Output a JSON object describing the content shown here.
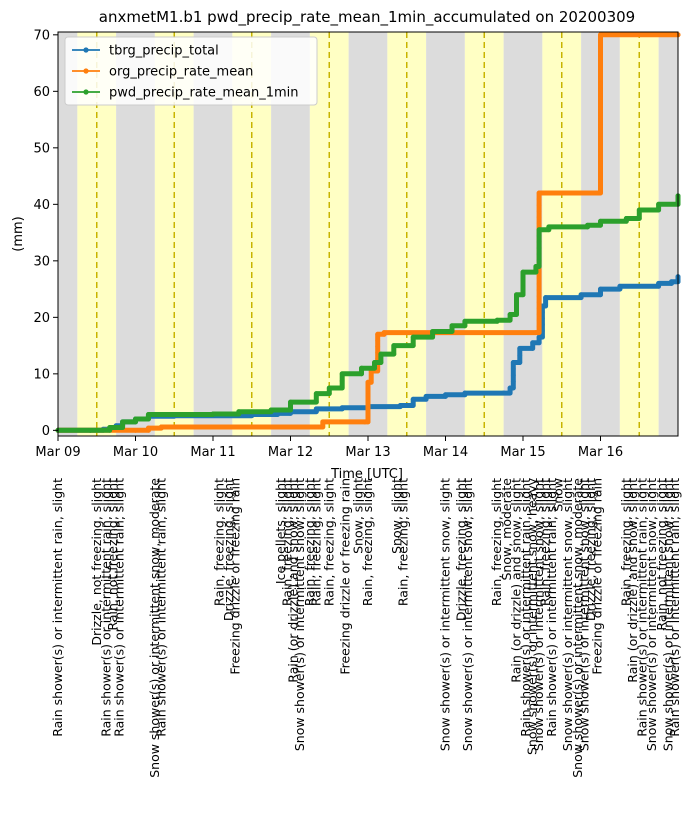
{
  "chart_data": {
    "type": "line",
    "title": "anxmetM1.b1 pwd_precip_rate_mean_1min_accumulated on 20200309",
    "xlabel": "Time [UTC]",
    "ylabel": "(mm)",
    "xlim": [
      "2020-03-09T00:00",
      "2020-03-17T00:00"
    ],
    "ylim": [
      -1,
      70.5
    ],
    "x_tick_labels": [
      {
        "t": "2020-03-09T00:00",
        "label": "Mar 09"
      },
      {
        "t": "2020-03-10T00:00",
        "label": "Mar 10"
      },
      {
        "t": "2020-03-11T00:00",
        "label": "Mar 11"
      },
      {
        "t": "2020-03-12T00:00",
        "label": "Mar 12"
      },
      {
        "t": "2020-03-13T00:00",
        "label": "Mar 13"
      },
      {
        "t": "2020-03-14T00:00",
        "label": "Mar 14"
      },
      {
        "t": "2020-03-15T00:00",
        "label": "Mar 15"
      },
      {
        "t": "2020-03-16T00:00",
        "label": "Mar 16"
      }
    ],
    "y_ticks": [
      0,
      10,
      20,
      30,
      40,
      50,
      60,
      70
    ],
    "legend_position": "top-left",
    "background_bands": [
      {
        "start": "2020-03-09T00:00",
        "end": "2020-03-09T06:00",
        "color": "#dcdcdc"
      },
      {
        "start": "2020-03-09T06:00",
        "end": "2020-03-09T18:00",
        "color": "#ffffc4"
      },
      {
        "start": "2020-03-09T18:00",
        "end": "2020-03-10T06:00",
        "color": "#dcdcdc"
      },
      {
        "start": "2020-03-10T06:00",
        "end": "2020-03-10T18:00",
        "color": "#ffffc4"
      },
      {
        "start": "2020-03-10T18:00",
        "end": "2020-03-11T06:00",
        "color": "#dcdcdc"
      },
      {
        "start": "2020-03-11T06:00",
        "end": "2020-03-11T18:00",
        "color": "#ffffc4"
      },
      {
        "start": "2020-03-11T18:00",
        "end": "2020-03-12T06:00",
        "color": "#dcdcdc"
      },
      {
        "start": "2020-03-12T06:00",
        "end": "2020-03-12T18:00",
        "color": "#ffffc4"
      },
      {
        "start": "2020-03-12T18:00",
        "end": "2020-03-13T06:00",
        "color": "#dcdcdc"
      },
      {
        "start": "2020-03-13T06:00",
        "end": "2020-03-13T18:00",
        "color": "#ffffc4"
      },
      {
        "start": "2020-03-13T18:00",
        "end": "2020-03-14T06:00",
        "color": "#dcdcdc"
      },
      {
        "start": "2020-03-14T06:00",
        "end": "2020-03-14T18:00",
        "color": "#ffffc4"
      },
      {
        "start": "2020-03-14T18:00",
        "end": "2020-03-15T06:00",
        "color": "#dcdcdc"
      },
      {
        "start": "2020-03-15T06:00",
        "end": "2020-03-15T18:00",
        "color": "#ffffc4"
      },
      {
        "start": "2020-03-15T18:00",
        "end": "2020-03-16T06:00",
        "color": "#dcdcdc"
      },
      {
        "start": "2020-03-16T06:00",
        "end": "2020-03-16T18:00",
        "color": "#ffffc4"
      },
      {
        "start": "2020-03-16T18:00",
        "end": "2020-03-17T00:00",
        "color": "#dcdcdc"
      }
    ],
    "noon_lines": [
      "2020-03-09T12:00",
      "2020-03-10T12:00",
      "2020-03-11T12:00",
      "2020-03-12T12:00",
      "2020-03-13T12:00",
      "2020-03-14T12:00",
      "2020-03-15T12:00",
      "2020-03-16T12:00"
    ],
    "series": [
      {
        "name": "tbrg_precip_total",
        "color": "#1f77b4",
        "points": [
          [
            "2020-03-09T00:00",
            0
          ],
          [
            "2020-03-09T10:00",
            0
          ],
          [
            "2020-03-09T14:00",
            0.2
          ],
          [
            "2020-03-09T18:00",
            0.8
          ],
          [
            "2020-03-09T20:00",
            1.5
          ],
          [
            "2020-03-10T00:00",
            2.0
          ],
          [
            "2020-03-10T04:00",
            2.5
          ],
          [
            "2020-03-10T12:00",
            2.6
          ],
          [
            "2020-03-11T00:00",
            2.6
          ],
          [
            "2020-03-11T12:00",
            2.8
          ],
          [
            "2020-03-11T20:00",
            3.0
          ],
          [
            "2020-03-12T00:00",
            3.3
          ],
          [
            "2020-03-12T08:00",
            3.8
          ],
          [
            "2020-03-12T16:00",
            4.0
          ],
          [
            "2020-03-13T00:00",
            4.2
          ],
          [
            "2020-03-13T10:00",
            4.4
          ],
          [
            "2020-03-13T14:00",
            5.5
          ],
          [
            "2020-03-13T18:00",
            6.0
          ],
          [
            "2020-03-14T00:00",
            6.3
          ],
          [
            "2020-03-14T06:00",
            6.6
          ],
          [
            "2020-03-14T18:00",
            6.6
          ],
          [
            "2020-03-14T20:00",
            7.5
          ],
          [
            "2020-03-14T21:00",
            12.0
          ],
          [
            "2020-03-14T23:00",
            14.5
          ],
          [
            "2020-03-15T03:00",
            15.5
          ],
          [
            "2020-03-15T05:00",
            16.5
          ],
          [
            "2020-03-15T06:00",
            22.0
          ],
          [
            "2020-03-15T07:00",
            23.5
          ],
          [
            "2020-03-15T18:00",
            24.0
          ],
          [
            "2020-03-16T00:00",
            25.0
          ],
          [
            "2020-03-16T06:00",
            25.5
          ],
          [
            "2020-03-16T18:00",
            26.0
          ],
          [
            "2020-03-16T22:00",
            26.3
          ],
          [
            "2020-03-17T00:00",
            27.2
          ]
        ]
      },
      {
        "name": "org_precip_rate_mean",
        "color": "#ff7f0e",
        "points": [
          [
            "2020-03-09T00:00",
            0
          ],
          [
            "2020-03-10T00:00",
            0
          ],
          [
            "2020-03-10T04:00",
            0.4
          ],
          [
            "2020-03-10T08:00",
            0.6
          ],
          [
            "2020-03-12T08:00",
            0.6
          ],
          [
            "2020-03-12T10:00",
            1.5
          ],
          [
            "2020-03-12T23:00",
            1.5
          ],
          [
            "2020-03-13T00:00",
            8.5
          ],
          [
            "2020-03-13T01:00",
            10.5
          ],
          [
            "2020-03-13T02:00",
            10.5
          ],
          [
            "2020-03-13T03:00",
            17.0
          ],
          [
            "2020-03-13T05:00",
            17.3
          ],
          [
            "2020-03-15T04:00",
            17.3
          ],
          [
            "2020-03-15T05:00",
            42.0
          ],
          [
            "2020-03-15T23:00",
            42.0
          ],
          [
            "2020-03-16T00:00",
            70.0
          ],
          [
            "2020-03-17T00:00",
            70.0
          ]
        ]
      },
      {
        "name": "pwd_precip_rate_mean_1min",
        "color": "#2ca02c",
        "points": [
          [
            "2020-03-09T00:00",
            0
          ],
          [
            "2020-03-09T10:00",
            0
          ],
          [
            "2020-03-09T16:00",
            0.5
          ],
          [
            "2020-03-09T20:00",
            1.5
          ],
          [
            "2020-03-10T00:00",
            2.0
          ],
          [
            "2020-03-10T04:00",
            2.8
          ],
          [
            "2020-03-11T00:00",
            2.9
          ],
          [
            "2020-03-11T08:00",
            3.3
          ],
          [
            "2020-03-11T18:00",
            3.6
          ],
          [
            "2020-03-12T00:00",
            5.0
          ],
          [
            "2020-03-12T08:00",
            6.5
          ],
          [
            "2020-03-12T12:00",
            7.5
          ],
          [
            "2020-03-12T16:00",
            10.0
          ],
          [
            "2020-03-12T22:00",
            11.0
          ],
          [
            "2020-03-13T02:00",
            12.0
          ],
          [
            "2020-03-13T04:00",
            13.5
          ],
          [
            "2020-03-13T08:00",
            15.0
          ],
          [
            "2020-03-13T14:00",
            16.5
          ],
          [
            "2020-03-13T20:00",
            17.5
          ],
          [
            "2020-03-14T02:00",
            18.5
          ],
          [
            "2020-03-14T06:00",
            19.3
          ],
          [
            "2020-03-14T16:00",
            19.5
          ],
          [
            "2020-03-14T20:00",
            20.5
          ],
          [
            "2020-03-14T22:00",
            24.0
          ],
          [
            "2020-03-15T00:00",
            28.0
          ],
          [
            "2020-03-15T04:00",
            29.0
          ],
          [
            "2020-03-15T05:00",
            35.5
          ],
          [
            "2020-03-15T08:00",
            36.0
          ],
          [
            "2020-03-15T20:00",
            36.3
          ],
          [
            "2020-03-16T00:00",
            37.0
          ],
          [
            "2020-03-16T08:00",
            37.5
          ],
          [
            "2020-03-16T12:00",
            39.0
          ],
          [
            "2020-03-16T18:00",
            40.0
          ],
          [
            "2020-03-17T00:00",
            41.5
          ]
        ]
      }
    ],
    "annotations": [
      {
        "t": "2020-03-09T00:00",
        "label": "Rain shower(s) or intermittent rain, slight"
      },
      {
        "t": "2020-03-09T12:00",
        "label": "Drizzle, not freezing, slight"
      },
      {
        "t": "2020-03-09T15:00",
        "label": "Rain shower(s) or intermittent rain, slight"
      },
      {
        "t": "2020-03-09T17:00",
        "label": "Rain, not freezing, slight"
      },
      {
        "t": "2020-03-09T19:00",
        "label": "Rain shower(s) or intermittent rain, slight"
      },
      {
        "t": "2020-03-10T06:00",
        "label": "Snow shower(s) or intermittent snow, moderate"
      },
      {
        "t": "2020-03-10T08:00",
        "label": "Rain shower(s) or intermittent rain, slight"
      },
      {
        "t": "2020-03-11T02:00",
        "label": "Rain, freezing, slight"
      },
      {
        "t": "2020-03-11T05:00",
        "label": "Drizzle, freezing, slight"
      },
      {
        "t": "2020-03-11T07:00",
        "label": "Freezing drizzle or freezing rain"
      },
      {
        "t": "2020-03-11T21:00",
        "label": "Ice pellets, slight"
      },
      {
        "t": "2020-03-11T23:00",
        "label": "Rain, freezing, slight"
      },
      {
        "t": "2020-03-12T01:00",
        "label": "Rain (or drizzle) and snow, slight"
      },
      {
        "t": "2020-03-12T03:00",
        "label": "Snow shower(s) or intermittent snow, slight"
      },
      {
        "t": "2020-03-12T06:00",
        "label": "Rain, freezing, slight"
      },
      {
        "t": "2020-03-12T08:00",
        "label": "Rain, freezing, slight"
      },
      {
        "t": "2020-03-12T12:00",
        "label": "Rain, freezing, slight"
      },
      {
        "t": "2020-03-12T17:00",
        "label": "Freezing drizzle or freezing rain"
      },
      {
        "t": "2020-03-12T21:00",
        "label": "Snow, slight"
      },
      {
        "t": "2020-03-13T00:00",
        "label": "Rain, freezing, slight"
      },
      {
        "t": "2020-03-13T09:00",
        "label": "Snow, slight"
      },
      {
        "t": "2020-03-13T11:00",
        "label": "Rain, freezing, slight"
      },
      {
        "t": "2020-03-14T00:00",
        "label": "Snow shower(s) or intermittent snow, slight"
      },
      {
        "t": "2020-03-14T05:00",
        "label": "Drizzle, freezing, slight"
      },
      {
        "t": "2020-03-14T07:00",
        "label": "Snow shower(s) or intermittent snow, slight"
      },
      {
        "t": "2020-03-14T16:00",
        "label": "Rain, freezing, slight"
      },
      {
        "t": "2020-03-14T19:00",
        "label": "Snow, moderate"
      },
      {
        "t": "2020-03-14T22:00",
        "label": "Rain (or drizzle) and snow, slight"
      },
      {
        "t": "2020-03-15T01:00",
        "label": "Rain shower(s) or intermittent rain, slight"
      },
      {
        "t": "2020-03-15T03:00",
        "label": "Snow shower(s) or intermittent snow, heavy"
      },
      {
        "t": "2020-03-15T05:00",
        "label": "Snow shower(s) or intermittent snow, slight"
      },
      {
        "t": "2020-03-15T07:00",
        "label": "Rain, freezing, slight"
      },
      {
        "t": "2020-03-15T09:00",
        "label": "Rain shower(s) or intermittent rain, slight"
      },
      {
        "t": "2020-03-15T11:00",
        "label": "Snow"
      },
      {
        "t": "2020-03-15T14:00",
        "label": "Snow shower(s) or intermittent snow, slight"
      },
      {
        "t": "2020-03-15T17:00",
        "label": "Snow shower(s) or intermittent snow, moderate"
      },
      {
        "t": "2020-03-15T19:00",
        "label": "Snow shower(s) or intermittent snow, slight"
      },
      {
        "t": "2020-03-15T21:00",
        "label": "Drizzle, freezing, slight"
      },
      {
        "t": "2020-03-15T23:00",
        "label": "Freezing drizzle or freezing rain"
      },
      {
        "t": "2020-03-16T08:00",
        "label": "Rain, freezing, slight"
      },
      {
        "t": "2020-03-16T10:00",
        "label": "Rain (or drizzle) and snow, slight"
      },
      {
        "t": "2020-03-16T13:00",
        "label": "Rain shower(s) or intermittent rain, slight"
      },
      {
        "t": "2020-03-16T16:00",
        "label": "Snow shower(s) or intermittent snow, slight"
      },
      {
        "t": "2020-03-16T19:00",
        "label": "Rain, not freezing, slight"
      },
      {
        "t": "2020-03-16T21:00",
        "label": "Snow shower(s) or intermittent snow, slight"
      },
      {
        "t": "2020-03-16T23:00",
        "label": "Rain shower(s) or intermittent rain, slight"
      }
    ]
  }
}
